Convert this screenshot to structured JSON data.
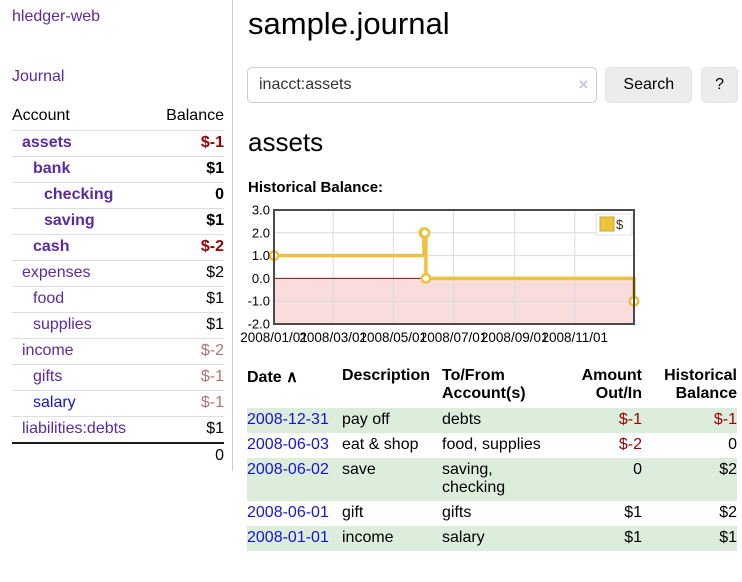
{
  "app": {
    "title": "hledger-web"
  },
  "colors": {
    "link_purple": "#5b2aa0",
    "link_blue": "#1414d6",
    "negative_strong": "#990000",
    "negative_muted": "#b47471",
    "row_stripe_green": "#ddeddb",
    "chart_line_yellow": "#edc240",
    "chart_negative_fill": "#f9dcdc",
    "chart_zero_line": "#871111"
  },
  "sidebar": {
    "journal_label": "Journal",
    "headers": [
      "Account",
      "Balance"
    ],
    "rows": [
      {
        "account": "assets",
        "balance": "$-1",
        "indent": 0,
        "bold": true
      },
      {
        "account": "bank",
        "balance": "$1",
        "indent": 1,
        "bold": true
      },
      {
        "account": "checking",
        "balance": "0",
        "indent": 2,
        "bold": true
      },
      {
        "account": "saving",
        "balance": "$1",
        "indent": 2,
        "bold": true
      },
      {
        "account": "cash",
        "balance": "$-2",
        "indent": 1,
        "bold": true
      },
      {
        "account": "expenses",
        "balance": "$2",
        "indent": 0,
        "bold": false
      },
      {
        "account": "food",
        "balance": "$1",
        "indent": 1,
        "bold": false
      },
      {
        "account": "supplies",
        "balance": "$1",
        "indent": 1,
        "bold": false
      },
      {
        "account": "income",
        "balance": "$-2",
        "indent": 0,
        "bold": false
      },
      {
        "account": "gifts",
        "balance": "$-1",
        "indent": 1,
        "bold": false
      },
      {
        "account": "salary",
        "balance": "$-1",
        "indent": 1,
        "bold": false,
        "link_color": "blue"
      },
      {
        "account": "liabilities:debts",
        "balance": "$1",
        "indent": 0,
        "bold": false
      }
    ],
    "total": "0"
  },
  "main": {
    "title": "sample.journal",
    "search": {
      "value": "inacct:assets",
      "clear_icon": "×",
      "button_label": "Search",
      "help_label": "?"
    },
    "account_heading": "assets",
    "chart_heading": "Historical Balance:"
  },
  "chart_data": {
    "type": "line",
    "title": "Historical Balance:",
    "step": true,
    "series": [
      {
        "name": "$",
        "points": [
          {
            "date": "2008-01-01",
            "value": 1
          },
          {
            "date": "2008-06-01",
            "value": 2
          },
          {
            "date": "2008-06-02",
            "value": 2
          },
          {
            "date": "2008-06-03",
            "value": 0
          },
          {
            "date": "2008-12-31",
            "value": -1
          }
        ]
      }
    ],
    "x_ticks": [
      "2008/01/01",
      "2008/03/01",
      "2008/05/01",
      "2008/07/01",
      "2008/09/01",
      "2008/11/01"
    ],
    "y_ticks": [
      "3.0",
      "2.0",
      "1.0",
      "0.0",
      "-1.0",
      "-2.0"
    ],
    "ylim": [
      -2,
      3
    ],
    "x_range_days": 365,
    "grid": true,
    "negative_region_shaded": true,
    "legend_position": "top-right"
  },
  "register": {
    "headers": [
      "Date",
      "Description",
      "To/From Account(s)",
      "Amount Out/In",
      "Historical Balance"
    ],
    "sort_icon": "∧",
    "rows": [
      {
        "date": "2008-12-31",
        "description": "pay off",
        "accounts": "debts",
        "amount": "$-1",
        "balance": "$-1"
      },
      {
        "date": "2008-06-03",
        "description": "eat & shop",
        "accounts": "food, supplies",
        "amount": "$-2",
        "balance": "0"
      },
      {
        "date": "2008-06-02",
        "description": "save",
        "accounts": "saving, checking",
        "amount": "0",
        "balance": "$2"
      },
      {
        "date": "2008-06-01",
        "description": "gift",
        "accounts": "gifts",
        "amount": "$1",
        "balance": "$2"
      },
      {
        "date": "2008-01-01",
        "description": "income",
        "accounts": "salary",
        "amount": "$1",
        "balance": "$1"
      }
    ]
  }
}
